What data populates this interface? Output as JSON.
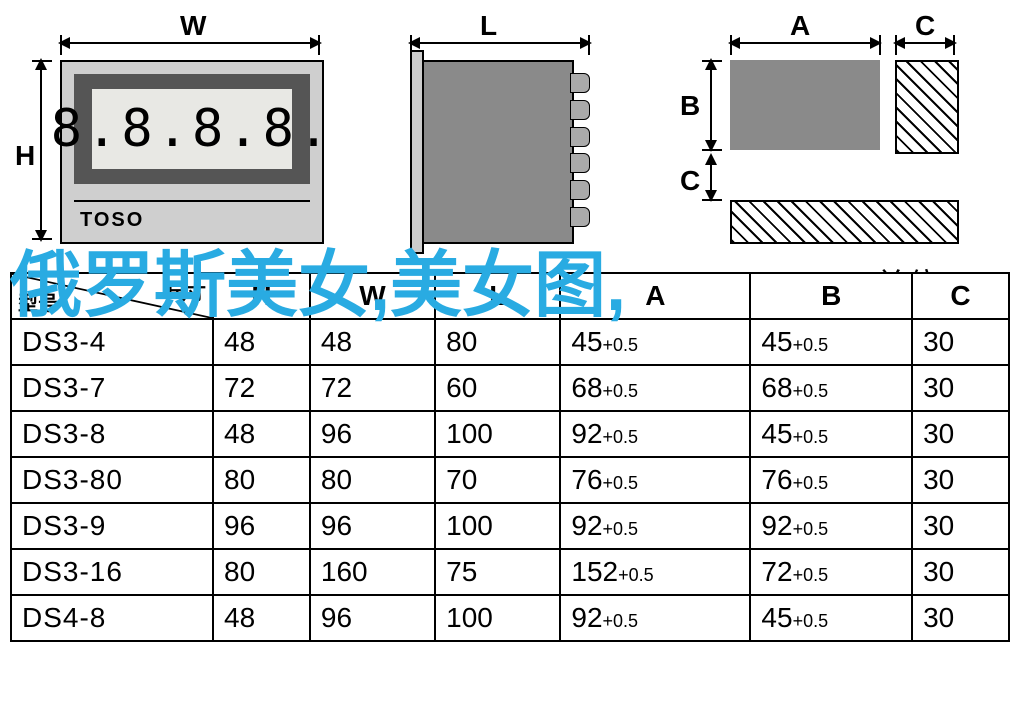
{
  "diagrams": {
    "front": {
      "w_label": "W",
      "h_label": "H",
      "brand": "TOSO",
      "lcd": "8.8.8.8."
    },
    "side": {
      "l_label": "L"
    },
    "cutout": {
      "a_label": "A",
      "b_label": "B",
      "c_label": "C",
      "c2_label": "C"
    }
  },
  "unit_label": "单位:mm",
  "overlay_text": "俄罗斯美女,美女图,",
  "table": {
    "header_corner_top": "尺寸",
    "header_corner_bottom": "型号",
    "columns": [
      "H",
      "W",
      "L",
      "A",
      "B",
      "C"
    ],
    "rows": [
      {
        "model": "DS3-4",
        "H": "48",
        "W": "48",
        "L": "80",
        "A": "45",
        "A_sub": "+0.5",
        "B": "45",
        "B_sub": "+0.5",
        "C": "30"
      },
      {
        "model": "DS3-7",
        "H": "72",
        "W": "72",
        "L": "60",
        "A": "68",
        "A_sub": "+0.5",
        "B": "68",
        "B_sub": "+0.5",
        "C": "30"
      },
      {
        "model": "DS3-8",
        "H": "48",
        "W": "96",
        "L": "100",
        "A": "92",
        "A_sub": "+0.5",
        "B": "45",
        "B_sub": "+0.5",
        "C": "30"
      },
      {
        "model": "DS3-80",
        "H": "80",
        "W": "80",
        "L": "70",
        "A": "76",
        "A_sub": "+0.5",
        "B": "76",
        "B_sub": "+0.5",
        "C": "30"
      },
      {
        "model": "DS3-9",
        "H": "96",
        "W": "96",
        "L": "100",
        "A": "92",
        "A_sub": "+0.5",
        "B": "92",
        "B_sub": "+0.5",
        "C": "30"
      },
      {
        "model": "DS3-16",
        "H": "80",
        "W": "160",
        "L": "75",
        "A": "152",
        "A_sub": "+0.5",
        "B": "72",
        "B_sub": "+0.5",
        "C": "30"
      },
      {
        "model": "DS4-8",
        "H": "48",
        "W": "96",
        "L": "100",
        "A": "92",
        "A_sub": "+0.5",
        "B": "45",
        "B_sub": "+0.5",
        "C": "30"
      }
    ]
  },
  "style": {
    "overlay_color": "#29abe2",
    "overlay_fontsize": 72,
    "table_fontsize": 28,
    "dim_label_fontsize": 28,
    "hatch_angle": 45,
    "panel_gray": "#8a8a8a",
    "light_gray": "#cfcfcf"
  }
}
